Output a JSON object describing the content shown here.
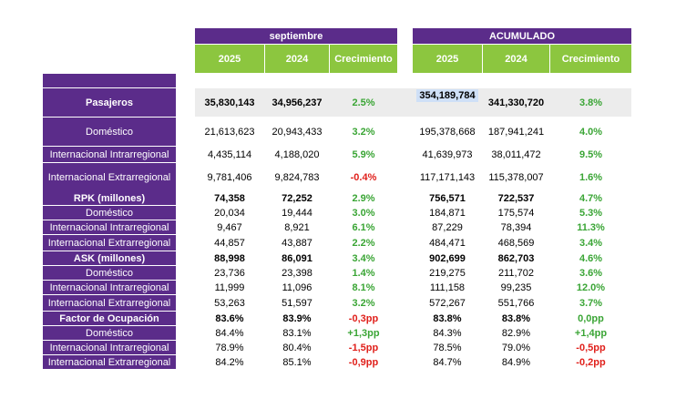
{
  "header": {
    "period": "septiembre",
    "cumulative": "ACUMULADO",
    "col_2025": "2025",
    "col_2024": "2024",
    "col_growth_month": "Crecimiento",
    "col_growth_cum": "Crecimiento"
  },
  "rows": [
    {
      "label": "Pasajeros",
      "bold": true,
      "m25": "35,830,143",
      "m24": "34,956,237",
      "mg": "2.5%",
      "c25": "354,189,784",
      "c24": "341,330,720",
      "cg": "3.8%"
    },
    {
      "label": "Doméstico",
      "bold": false,
      "m25": "21,613,623",
      "m24": "20,943,433",
      "mg": "3.2%",
      "c25": "195,378,668",
      "c24": "187,941,241",
      "cg": "4.0%"
    },
    {
      "label": "Internacional Intrarregional",
      "bold": false,
      "m25": "4,435,114",
      "m24": "4,188,020",
      "mg": "5.9%",
      "c25": "41,639,973",
      "c24": "38,011,472",
      "cg": "9.5%"
    },
    {
      "label": "Internacional Extrarregional",
      "bold": false,
      "m25": "9,781,406",
      "m24": "9,824,783",
      "mg": "-0.4%",
      "c25": "117,171,143",
      "c24": "115,378,007",
      "cg": "1.6%"
    },
    {
      "label": "RPK (millones)",
      "bold": true,
      "m25": "74,358",
      "m24": "72,252",
      "mg": "2.9%",
      "c25": "756,571",
      "c24": "722,537",
      "cg": "4.7%"
    },
    {
      "label": "Doméstico",
      "bold": false,
      "m25": "20,034",
      "m24": "19,444",
      "mg": "3.0%",
      "c25": "184,871",
      "c24": "175,574",
      "cg": "5.3%"
    },
    {
      "label": "Internacional Intrarregional",
      "bold": false,
      "m25": "9,467",
      "m24": "8,921",
      "mg": "6.1%",
      "c25": "87,229",
      "c24": "78,394",
      "cg": "11.3%"
    },
    {
      "label": "Internacional Extrarregional",
      "bold": false,
      "m25": "44,857",
      "m24": "43,887",
      "mg": "2.2%",
      "c25": "484,471",
      "c24": "468,569",
      "cg": "3.4%"
    },
    {
      "label": "ASK (millones)",
      "bold": true,
      "m25": "88,998",
      "m24": "86,091",
      "mg": "3.4%",
      "c25": "902,699",
      "c24": "862,703",
      "cg": "4.6%"
    },
    {
      "label": "Doméstico",
      "bold": false,
      "m25": "23,736",
      "m24": "23,398",
      "mg": "1.4%",
      "c25": "219,275",
      "c24": "211,702",
      "cg": "3.6%"
    },
    {
      "label": "Internacional Intrarregional",
      "bold": false,
      "m25": "11,999",
      "m24": "11,096",
      "mg": "8.1%",
      "c25": "111,158",
      "c24": "99,235",
      "cg": "12.0%"
    },
    {
      "label": "Internacional Extrarregional",
      "bold": false,
      "m25": "53,263",
      "m24": "51,597",
      "mg": "3.2%",
      "c25": "572,267",
      "c24": "551,766",
      "cg": "3.7%"
    },
    {
      "label": "Factor de Ocupación",
      "bold": true,
      "m25": "83.6%",
      "m24": "83.9%",
      "mg": "-0,3pp",
      "c25": "83.8%",
      "c24": "83.8%",
      "cg": "0,0pp"
    },
    {
      "label": "Doméstico",
      "bold": false,
      "m25": "84.4%",
      "m24": "83.1%",
      "mg": "+1,3pp",
      "c25": "84.3%",
      "c24": "82.9%",
      "cg": "+1,4pp"
    },
    {
      "label": "Internacional Intrarregional",
      "bold": false,
      "m25": "78.9%",
      "m24": "80.4%",
      "mg": "-1,5pp",
      "c25": "78.5%",
      "c24": "79.0%",
      "cg": "-0,5pp"
    },
    {
      "label": "Internacional Extrarregional",
      "bold": false,
      "m25": "84.2%",
      "m24": "85.1%",
      "mg": "-0,9pp",
      "c25": "84.7%",
      "c24": "84.9%",
      "cg": "-0,2pp"
    }
  ]
}
